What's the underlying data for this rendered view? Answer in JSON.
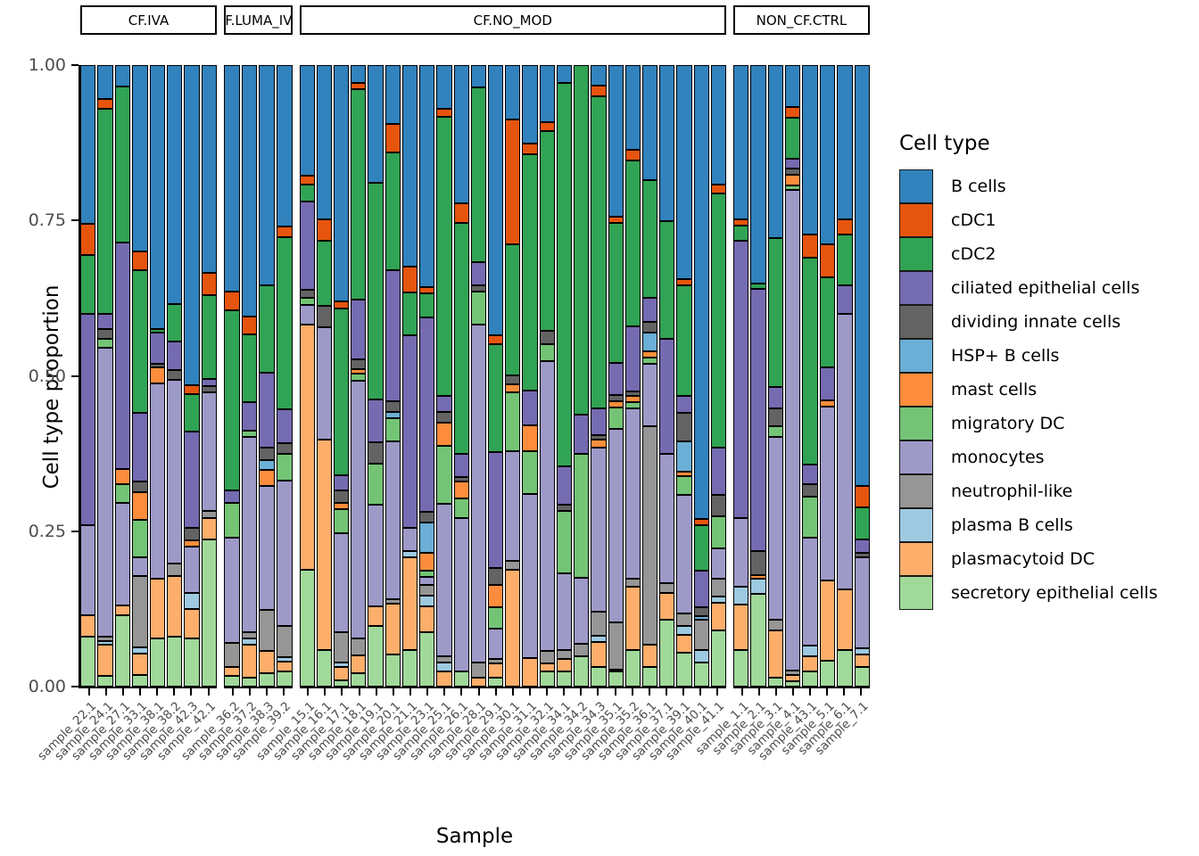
{
  "figure": {
    "y_axis": {
      "title": "Cell type proportion",
      "tick_labels": [
        "1.00",
        "0.75",
        "0.50",
        "0.25",
        "0.00"
      ]
    },
    "x_axis": {
      "title": "Sample"
    },
    "legend": {
      "title": "Cell type"
    }
  },
  "chart_data": {
    "type": "bar",
    "stacked": true,
    "orientation": "vertical",
    "title": "",
    "xlabel": "Sample",
    "ylabel": "Cell type proportion",
    "ylim": [
      0,
      1
    ],
    "y_ticks": [
      0,
      0.25,
      0.5,
      0.75,
      1
    ],
    "grid": false,
    "legend_position": "right",
    "legend_title": "Cell type",
    "stack_order": "legend order, top of bar to bottom of bar",
    "cell_types": [
      {
        "name": "B cells",
        "color": "#3182BD"
      },
      {
        "name": "cDC1",
        "color": "#E6550D"
      },
      {
        "name": "cDC2",
        "color": "#31A354"
      },
      {
        "name": "ciliated epithelial cells",
        "color": "#756BB1"
      },
      {
        "name": "dividing innate cells",
        "color": "#636363"
      },
      {
        "name": "HSP+ B cells",
        "color": "#6BAED6"
      },
      {
        "name": "mast cells",
        "color": "#FD8D3C"
      },
      {
        "name": "migratory DC",
        "color": "#74C476"
      },
      {
        "name": "monocytes",
        "color": "#9E9AC8"
      },
      {
        "name": "neutrophil-like",
        "color": "#969696"
      },
      {
        "name": "plasma B cells",
        "color": "#9ECAE1"
      },
      {
        "name": "plasmacytoid DC",
        "color": "#FDAE6B"
      },
      {
        "name": "secretory epithelial cells",
        "color": "#A1D99B"
      }
    ],
    "facets": [
      {
        "label": "CF.IVA",
        "samples": [
          {
            "label": "sample_22.1",
            "values": [
              0.255,
              0.05,
              0.095,
              0.34,
              0,
              0,
              0,
              0,
              0.145,
              0,
              0,
              0.035,
              0.08
            ]
          },
          {
            "label": "sample_24.1",
            "values": [
              0.055,
              0.015,
              0.33,
              0.025,
              0.015,
              0,
              0,
              0.015,
              0.465,
              0.007,
              0.006,
              0.05,
              0.017
            ]
          },
          {
            "label": "sample_27.1",
            "values": [
              0.035,
              0,
              0.25,
              0.365,
              0,
              0,
              0.025,
              0.03,
              0.165,
              0,
              0,
              0.015,
              0.115
            ]
          },
          {
            "label": "sample_33.1",
            "values": [
              0.3,
              0.03,
              0.23,
              0.11,
              0.017,
              0,
              0.045,
              0.06,
              0.03,
              0.115,
              0.01,
              0.035,
              0.018
            ]
          },
          {
            "label": "sample_38.1",
            "values": [
              0.425,
              0,
              0.005,
              0.05,
              0.007,
              0,
              0.025,
              0,
              0.315,
              0,
              0,
              0.095,
              0.078
            ]
          },
          {
            "label": "sample_38.2",
            "values": [
              0.385,
              0,
              0.06,
              0.045,
              0.017,
              0,
              0,
              0,
              0.295,
              0.02,
              0,
              0.098,
              0.08
            ]
          },
          {
            "label": "sample_42.3",
            "values": [
              0.515,
              0.015,
              0.06,
              0.155,
              0.02,
              0,
              0.01,
              0,
              0.075,
              0,
              0.025,
              0.047,
              0.078
            ]
          },
          {
            "label": "sample_42.1",
            "values": [
              0.335,
              0.035,
              0.135,
              0.012,
              0.01,
              0,
              0,
              0,
              0.19,
              0.012,
              0,
              0.035,
              0.236
            ]
          }
        ]
      },
      {
        "label": "CF.LUMA_IVA",
        "samples": [
          {
            "label": "sample_36.2",
            "values": [
              0.365,
              0.03,
              0.29,
              0.02,
              0,
              0,
              0,
              0.055,
              0.17,
              0.038,
              0,
              0.015,
              0.017
            ]
          },
          {
            "label": "sample_37.2",
            "values": [
              0.405,
              0.028,
              0.11,
              0.045,
              0,
              0,
              0,
              0.01,
              0.315,
              0.01,
              0.01,
              0.052,
              0.015
            ]
          },
          {
            "label": "sample_38.3",
            "values": [
              0.355,
              0,
              0.14,
              0.12,
              0.02,
              0.017,
              0.025,
              0,
              0.2,
              0.065,
              0,
              0.037,
              0.021
            ]
          },
          {
            "label": "sample_39.2",
            "values": [
              0.26,
              0.017,
              0.277,
              0.055,
              0.017,
              0,
              0,
              0.042,
              0.235,
              0.05,
              0.007,
              0.015,
              0.025
            ]
          }
        ]
      },
      {
        "label": "CF.NO_MOD",
        "samples": [
          {
            "label": "sample_15.1",
            "values": [
              0.178,
              0.014,
              0.028,
              0.142,
              0.012,
              0,
              0,
              0.012,
              0.031,
              0,
              0,
              0.395,
              0.188
            ]
          },
          {
            "label": "sample_16.1",
            "values": [
              0.248,
              0.035,
              0.104,
              0,
              0.035,
              0,
              0,
              0,
              0.18,
              0,
              0,
              0.339,
              0.059
            ]
          },
          {
            "label": "sample_17.1",
            "values": [
              0.38,
              0.012,
              0.268,
              0.024,
              0.021,
              0,
              0.01,
              0.038,
              0.16,
              0.049,
              0.007,
              0.021,
              0.01
            ]
          },
          {
            "label": "sample_18.1",
            "values": [
              0.029,
              0.01,
              0.338,
              0.097,
              0.015,
              0,
              0.008,
              0.011,
              0.414,
              0.028,
              0,
              0.028,
              0.022
            ]
          },
          {
            "label": "sample_19.1",
            "values": [
              0.19,
              0,
              0.348,
              0.069,
              0.035,
              0,
              0,
              0.066,
              0.163,
              0,
              0,
              0.031,
              0.098
            ]
          },
          {
            "label": "sample_20.1",
            "values": [
              0.095,
              0.045,
              0.19,
              0.211,
              0.017,
              0.01,
              0,
              0.038,
              0.253,
              0.007,
              0,
              0.083,
              0.051
            ]
          },
          {
            "label": "sample_21.1",
            "values": [
              0.324,
              0.042,
              0.069,
              0.309,
              0,
              0,
              0,
              0,
              0.038,
              0,
              0.01,
              0.149,
              0.059
            ]
          },
          {
            "label": "sample_23.1",
            "values": [
              0.357,
              0.01,
              0.039,
              0.313,
              0.017,
              0.049,
              0.028,
              0.01,
              0.014,
              0.017,
              0.017,
              0.042,
              0.087
            ]
          },
          {
            "label": "sample_25.1",
            "values": [
              0.071,
              0.012,
              0.449,
              0.026,
              0.017,
              0,
              0.037,
              0.094,
              0.246,
              0.01,
              0.014,
              0.024,
              0
            ]
          },
          {
            "label": "sample_26.1",
            "values": [
              0.223,
              0.031,
              0.371,
              0.038,
              0.007,
              0,
              0.028,
              0.031,
              0.246,
              0,
              0,
              0,
              0.025
            ]
          },
          {
            "label": "sample_28.1",
            "values": [
              0.036,
              0,
              0.281,
              0.038,
              0.01,
              0,
              0,
              0.052,
              0.545,
              0.024,
              0,
              0.014,
              0
            ]
          },
          {
            "label": "sample_29.1",
            "values": [
              0.435,
              0.014,
              0.173,
              0.187,
              0.028,
              0,
              0.035,
              0.035,
              0.049,
              0.007,
              0,
              0.023,
              0.014
            ]
          },
          {
            "label": "sample_30.1",
            "values": [
              0.088,
              0.2,
              0.211,
              0,
              0.014,
              0,
              0.014,
              0.094,
              0.177,
              0.014,
              0,
              0.188,
              0
            ]
          },
          {
            "label": "sample_31.1",
            "values": [
              0.126,
              0.017,
              0.381,
              0.055,
              0,
              0,
              0.042,
              0.069,
              0.264,
              0,
              0,
              0.046,
              0
            ]
          },
          {
            "label": "sample_32.1",
            "values": [
              0.092,
              0.014,
              0.322,
              0,
              0.021,
              0,
              0,
              0.028,
              0.465,
              0.021,
              0,
              0.013,
              0.024
            ]
          },
          {
            "label": "sample_34.1",
            "values": [
              0.029,
              0,
              0.617,
              0.062,
              0.01,
              0,
              0,
              0.1,
              0.123,
              0.014,
              0,
              0.021,
              0.024
            ]
          },
          {
            "label": "sample_34.2",
            "values": [
              0,
              0,
              0.563,
              0.062,
              0,
              0,
              0,
              0.2,
              0.106,
              0.02,
              0,
              0,
              0.049
            ]
          },
          {
            "label": "sample_34.3",
            "values": [
              0.033,
              0.017,
              0.503,
              0.042,
              0.007,
              0,
              0.014,
              0,
              0.264,
              0.038,
              0.01,
              0.041,
              0.031
            ]
          },
          {
            "label": "sample_35.1",
            "values": [
              0.244,
              0.01,
              0.225,
              0.052,
              0.01,
              0,
              0.01,
              0.035,
              0.312,
              0.076,
              0,
              0.002,
              0.024
            ]
          },
          {
            "label": "sample_35.2",
            "values": [
              0.137,
              0.017,
              0.267,
              0.104,
              0.007,
              0,
              0.01,
              0.01,
              0.274,
              0.014,
              0,
              0.101,
              0.059
            ]
          },
          {
            "label": "sample_36.1",
            "values": [
              0.185,
              0,
              0.19,
              0.038,
              0.017,
              0.031,
              0.01,
              0.01,
              0.1,
              0.352,
              0,
              0.036,
              0.031
            ]
          },
          {
            "label": "sample_37.1",
            "values": [
              0.251,
              0,
              0.19,
              0.184,
              0,
              0,
              0,
              0,
              0.208,
              0.017,
              0,
              0.043,
              0.107
            ]
          },
          {
            "label": "sample_39.1",
            "values": [
              0.345,
              0.01,
              0.177,
              0.028,
              0.045,
              0.049,
              0.007,
              0.031,
              0.19,
              0.02,
              0.015,
              0.028,
              0.055
            ]
          },
          {
            "label": "sample_40.1",
            "values": [
              0.73,
              0.01,
              0.073,
              0.059,
              0.014,
              0.007,
              0,
              0,
              0,
              0.048,
              0.021,
              0,
              0.038
            ]
          },
          {
            "label": "sample_41.1",
            "values": [
              0.192,
              0.014,
              0.409,
              0.076,
              0.035,
              0,
              0,
              0.052,
              0.049,
              0.028,
              0.01,
              0.045,
              0.09
            ]
          }
        ]
      },
      {
        "label": "NON_CF.CTRL",
        "samples": [
          {
            "label": "sample_1.1",
            "values": [
              0.248,
              0.01,
              0.024,
              0.447,
              0,
              0,
              0,
              0,
              0.111,
              0,
              0.028,
              0.073,
              0.059
            ]
          },
          {
            "label": "sample_2.1",
            "values": [
              0.352,
              0,
              0.008,
              0.422,
              0.038,
              0,
              0.007,
              0,
              0,
              0,
              0.024,
              0,
              0.149
            ]
          },
          {
            "label": "sample_3.1",
            "values": [
              0.279,
              0,
              0.239,
              0.035,
              0.028,
              0,
              0,
              0.017,
              0.295,
              0.017,
              0,
              0.076,
              0.014
            ]
          },
          {
            "label": "sample_4.1",
            "values": [
              0.067,
              0.017,
              0.066,
              0.017,
              0.01,
              0,
              0.017,
              0.007,
              0.773,
              0.007,
              0,
              0.01,
              0.009
            ]
          },
          {
            "label": "sample_43.1",
            "values": [
              0.272,
              0.038,
              0.333,
              0.031,
              0.021,
              0,
              0,
              0.066,
              0.173,
              0,
              0.017,
              0.024,
              0.025
            ]
          },
          {
            "label": "sample_5.1",
            "values": [
              0.289,
              0.052,
              0.146,
              0.052,
              0,
              0,
              0.01,
              0,
              0.281,
              0,
              0,
              0.128,
              0.042
            ]
          },
          {
            "label": "sample_6.1",
            "values": [
              0.248,
              0.024,
              0.083,
              0.045,
              0,
              0,
              0,
              0,
              0.444,
              0,
              0,
              0.097,
              0.059
            ]
          },
          {
            "label": "sample_7.1",
            "values": [
              0.677,
              0.035,
              0.052,
              0.021,
              0.007,
              0,
              0,
              0,
              0.146,
              0,
              0.01,
              0.021,
              0.031
            ]
          }
        ]
      }
    ]
  }
}
